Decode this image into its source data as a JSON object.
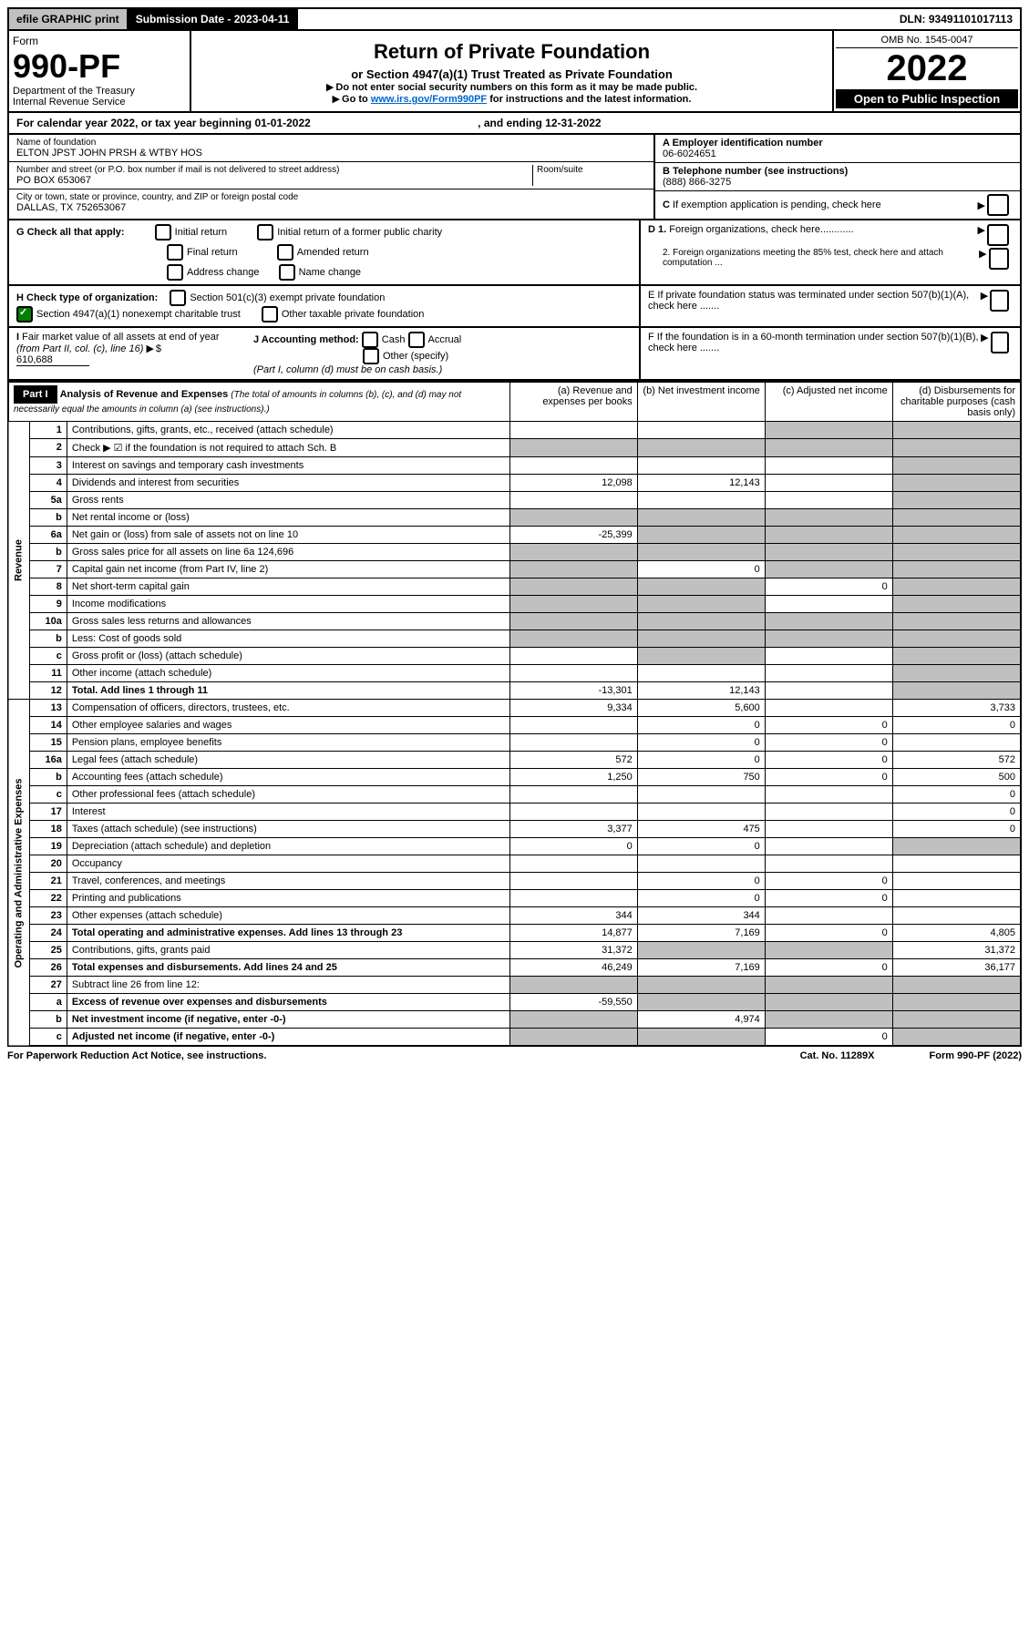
{
  "topbar": {
    "efile": "efile GRAPHIC print",
    "submission": "Submission Date - 2023-04-11",
    "dln": "DLN: 93491101017113"
  },
  "header": {
    "form_label": "Form",
    "form_number": "990-PF",
    "dept": "Department of the Treasury\nInternal Revenue Service",
    "title": "Return of Private Foundation",
    "subtitle": "or Section 4947(a)(1) Trust Treated as Private Foundation",
    "note1": "Do not enter social security numbers on this form as it may be made public.",
    "note2_prefix": "Go to ",
    "note2_link": "www.irs.gov/Form990PF",
    "note2_suffix": " for instructions and the latest information.",
    "omb": "OMB No. 1545-0047",
    "year": "2022",
    "open": "Open to Public Inspection"
  },
  "calendar": "For calendar year 2022, or tax year beginning 01-01-2022",
  "calendar_end": ", and ending 12-31-2022",
  "info": {
    "name_lbl": "Name of foundation",
    "name": "ELTON JPST JOHN PRSH & WTBY HOS",
    "addr_lbl": "Number and street (or P.O. box number if mail is not delivered to street address)",
    "addr": "PO BOX 653067",
    "room_lbl": "Room/suite",
    "city_lbl": "City or town, state or province, country, and ZIP or foreign postal code",
    "city": "DALLAS, TX  752653067",
    "ein_lbl": "A Employer identification number",
    "ein": "06-6024651",
    "tel_lbl": "B Telephone number (see instructions)",
    "tel": "(888) 866-3275",
    "c_lbl": "C If exemption application is pending, check here",
    "d1": "D 1. Foreign organizations, check here............",
    "d2": "2. Foreign organizations meeting the 85% test, check here and attach computation ...",
    "e_lbl": "E  If private foundation status was terminated under section 507(b)(1)(A), check here .......",
    "f_lbl": "F  If the foundation is in a 60-month termination under section 507(b)(1)(B), check here .......",
    "g_lbl": "G Check all that apply:",
    "g_opts": [
      "Initial return",
      "Initial return of a former public charity",
      "Final return",
      "Amended return",
      "Address change",
      "Name change"
    ],
    "h_lbl": "H Check type of organization:",
    "h_opt1": "Section 501(c)(3) exempt private foundation",
    "h_opt2": "Section 4947(a)(1) nonexempt charitable trust",
    "h_opt3": "Other taxable private foundation",
    "i_lbl": "I Fair market value of all assets at end of year (from Part II, col. (c), line 16)",
    "i_val": "610,688",
    "j_lbl": "J Accounting method:",
    "j_opts": [
      "Cash",
      "Accrual",
      "Other (specify)"
    ],
    "j_note": "(Part I, column (d) must be on cash basis.)"
  },
  "part1": {
    "label": "Part I",
    "title": "Analysis of Revenue and Expenses",
    "title_note": "(The total of amounts in columns (b), (c), and (d) may not necessarily equal the amounts in column (a) (see instructions).)",
    "col_a": "(a)   Revenue and expenses per books",
    "col_b": "(b)   Net investment income",
    "col_c": "(c)   Adjusted net income",
    "col_d": "(d)  Disbursements for charitable purposes (cash basis only)",
    "side_revenue": "Revenue",
    "side_expenses": "Operating and Administrative Expenses"
  },
  "rows": [
    {
      "n": "1",
      "d": "Contributions, gifts, grants, etc., received (attach schedule)",
      "a": "",
      "b": "",
      "c": "s",
      "dd": "s"
    },
    {
      "n": "2",
      "d": "Check ▶ ☑ if the foundation is not required to attach Sch. B",
      "a": "s",
      "b": "s",
      "c": "s",
      "dd": "s"
    },
    {
      "n": "3",
      "d": "Interest on savings and temporary cash investments",
      "a": "",
      "b": "",
      "c": "",
      "dd": "s"
    },
    {
      "n": "4",
      "d": "Dividends and interest from securities",
      "a": "12,098",
      "b": "12,143",
      "c": "",
      "dd": "s"
    },
    {
      "n": "5a",
      "d": "Gross rents",
      "a": "",
      "b": "",
      "c": "",
      "dd": "s"
    },
    {
      "n": "b",
      "d": "Net rental income or (loss)",
      "a": "s",
      "b": "s",
      "c": "s",
      "dd": "s"
    },
    {
      "n": "6a",
      "d": "Net gain or (loss) from sale of assets not on line 10",
      "a": "-25,399",
      "b": "s",
      "c": "s",
      "dd": "s"
    },
    {
      "n": "b",
      "d": "Gross sales price for all assets on line 6a           124,696",
      "a": "s",
      "b": "s",
      "c": "s",
      "dd": "s"
    },
    {
      "n": "7",
      "d": "Capital gain net income (from Part IV, line 2)",
      "a": "s",
      "b": "0",
      "c": "s",
      "dd": "s"
    },
    {
      "n": "8",
      "d": "Net short-term capital gain",
      "a": "s",
      "b": "s",
      "c": "0",
      "dd": "s"
    },
    {
      "n": "9",
      "d": "Income modifications",
      "a": "s",
      "b": "s",
      "c": "",
      "dd": "s"
    },
    {
      "n": "10a",
      "d": "Gross sales less returns and allowances",
      "a": "s",
      "b": "s",
      "c": "s",
      "dd": "s"
    },
    {
      "n": "b",
      "d": "Less: Cost of goods sold",
      "a": "s",
      "b": "s",
      "c": "s",
      "dd": "s"
    },
    {
      "n": "c",
      "d": "Gross profit or (loss) (attach schedule)",
      "a": "",
      "b": "s",
      "c": "",
      "dd": "s"
    },
    {
      "n": "11",
      "d": "Other income (attach schedule)",
      "a": "",
      "b": "",
      "c": "",
      "dd": "s"
    },
    {
      "n": "12",
      "d": "Total. Add lines 1 through 11",
      "a": "-13,301",
      "b": "12,143",
      "c": "",
      "dd": "s",
      "bold": true
    },
    {
      "n": "13",
      "d": "Compensation of officers, directors, trustees, etc.",
      "a": "9,334",
      "b": "5,600",
      "c": "",
      "dd": "3,733"
    },
    {
      "n": "14",
      "d": "Other employee salaries and wages",
      "a": "",
      "b": "0",
      "c": "0",
      "dd": "0"
    },
    {
      "n": "15",
      "d": "Pension plans, employee benefits",
      "a": "",
      "b": "0",
      "c": "0",
      "dd": ""
    },
    {
      "n": "16a",
      "d": "Legal fees (attach schedule)",
      "a": "572",
      "b": "0",
      "c": "0",
      "dd": "572"
    },
    {
      "n": "b",
      "d": "Accounting fees (attach schedule)",
      "a": "1,250",
      "b": "750",
      "c": "0",
      "dd": "500"
    },
    {
      "n": "c",
      "d": "Other professional fees (attach schedule)",
      "a": "",
      "b": "",
      "c": "",
      "dd": "0"
    },
    {
      "n": "17",
      "d": "Interest",
      "a": "",
      "b": "",
      "c": "",
      "dd": "0"
    },
    {
      "n": "18",
      "d": "Taxes (attach schedule) (see instructions)",
      "a": "3,377",
      "b": "475",
      "c": "",
      "dd": "0"
    },
    {
      "n": "19",
      "d": "Depreciation (attach schedule) and depletion",
      "a": "0",
      "b": "0",
      "c": "",
      "dd": "s"
    },
    {
      "n": "20",
      "d": "Occupancy",
      "a": "",
      "b": "",
      "c": "",
      "dd": ""
    },
    {
      "n": "21",
      "d": "Travel, conferences, and meetings",
      "a": "",
      "b": "0",
      "c": "0",
      "dd": ""
    },
    {
      "n": "22",
      "d": "Printing and publications",
      "a": "",
      "b": "0",
      "c": "0",
      "dd": ""
    },
    {
      "n": "23",
      "d": "Other expenses (attach schedule)",
      "a": "344",
      "b": "344",
      "c": "",
      "dd": ""
    },
    {
      "n": "24",
      "d": "Total operating and administrative expenses. Add lines 13 through 23",
      "a": "14,877",
      "b": "7,169",
      "c": "0",
      "dd": "4,805",
      "bold": true
    },
    {
      "n": "25",
      "d": "Contributions, gifts, grants paid",
      "a": "31,372",
      "b": "s",
      "c": "s",
      "dd": "31,372"
    },
    {
      "n": "26",
      "d": "Total expenses and disbursements. Add lines 24 and 25",
      "a": "46,249",
      "b": "7,169",
      "c": "0",
      "dd": "36,177",
      "bold": true
    },
    {
      "n": "27",
      "d": "Subtract line 26 from line 12:",
      "a": "s",
      "b": "s",
      "c": "s",
      "dd": "s"
    },
    {
      "n": "a",
      "d": "Excess of revenue over expenses and disbursements",
      "a": "-59,550",
      "b": "s",
      "c": "s",
      "dd": "s",
      "bold": true
    },
    {
      "n": "b",
      "d": "Net investment income (if negative, enter -0-)",
      "a": "s",
      "b": "4,974",
      "c": "s",
      "dd": "s",
      "bold": true
    },
    {
      "n": "c",
      "d": "Adjusted net income (if negative, enter -0-)",
      "a": "s",
      "b": "s",
      "c": "0",
      "dd": "s",
      "bold": true
    }
  ],
  "footer": {
    "left": "For Paperwork Reduction Act Notice, see instructions.",
    "mid": "Cat. No. 11289X",
    "right": "Form 990-PF (2022)"
  }
}
